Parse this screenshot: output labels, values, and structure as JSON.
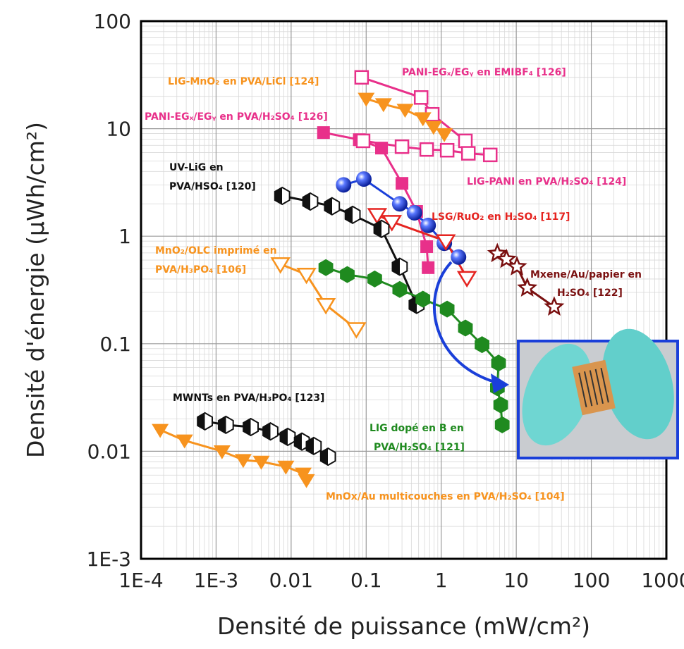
{
  "chart_data": {
    "type": "scatter",
    "xlabel": "Densité de puissance (mW/cm²)",
    "ylabel": "Densité d'énergie (µWh/cm²)",
    "xscale": "log",
    "yscale": "log",
    "grid": true,
    "xlim": [
      0.0001,
      1000
    ],
    "ylim": [
      0.001,
      100
    ],
    "xticks": [
      {
        "value": 0.0001,
        "label": "1E-4"
      },
      {
        "value": 0.001,
        "label": "1E-3"
      },
      0.01,
      0.1,
      1,
      10,
      100,
      1000
    ],
    "yticks": [
      {
        "value": 0.001,
        "label": "1E-3"
      },
      0.01,
      0.1,
      1,
      10,
      100
    ],
    "series": [
      {
        "color": "#e8308a",
        "marker": "square-open",
        "x": [
          0.087,
          0.54,
          0.76,
          2.1
        ],
        "values": [
          30,
          19.5,
          13.6,
          7.7
        ]
      },
      {
        "color": "#f7931e",
        "marker": "triangle-down",
        "x": [
          0.1,
          0.17,
          0.33,
          0.57,
          0.79,
          1.1
        ],
        "values": [
          19,
          16.9,
          15,
          12.5,
          10.4,
          8.9
        ]
      },
      {
        "color": "#e8308a",
        "marker": "square",
        "x": [
          0.027,
          0.081,
          0.16,
          0.3,
          0.47,
          0.64,
          0.67
        ],
        "values": [
          9.2,
          7.9,
          6.6,
          3.1,
          1.7,
          0.8,
          0.51
        ]
      },
      {
        "color": "#e8308a",
        "marker": "square-open",
        "x": [
          0.091,
          0.3,
          0.64,
          1.2,
          2.3,
          4.5
        ],
        "values": [
          7.7,
          6.8,
          6.4,
          6.3,
          5.9,
          5.7
        ]
      },
      {
        "color": "#1a3fd9",
        "marker": "sphere",
        "x": [
          0.05,
          0.093,
          0.28,
          0.44,
          0.67,
          1.1,
          1.7
        ],
        "values": [
          3.0,
          3.4,
          2.0,
          1.65,
          1.26,
          0.86,
          0.64
        ]
      },
      {
        "color": "#e52420",
        "marker": "triangle-down-open",
        "x": [
          0.14,
          0.22,
          1.15,
          2.2
        ],
        "values": [
          1.58,
          1.36,
          0.9,
          0.41
        ]
      },
      {
        "color": "#111111",
        "marker": "hexagon-half",
        "x": [
          0.0076,
          0.018,
          0.035,
          0.066,
          0.16,
          0.28,
          0.47
        ],
        "values": [
          2.37,
          2.1,
          1.9,
          1.58,
          1.17,
          0.52,
          0.23
        ]
      },
      {
        "color": "#f7931e",
        "marker": "triangle-down-open",
        "x": [
          0.0072,
          0.016,
          0.029,
          0.074
        ],
        "values": [
          0.55,
          0.44,
          0.23,
          0.137
        ]
      },
      {
        "color": "#1f8a1f",
        "marker": "hexagon",
        "x": [
          0.029,
          0.056,
          0.13,
          0.28,
          0.57,
          1.2,
          2.1,
          3.5,
          5.8,
          5.6,
          6.2,
          6.5
        ],
        "values": [
          0.51,
          0.44,
          0.4,
          0.32,
          0.26,
          0.21,
          0.14,
          0.098,
          0.066,
          0.039,
          0.027,
          0.0176
        ]
      },
      {
        "color": "#7a1010",
        "marker": "star-open",
        "x": [
          5.6,
          7.4,
          10.2,
          14,
          32
        ],
        "values": [
          0.69,
          0.61,
          0.52,
          0.33,
          0.22
        ]
      },
      {
        "color": "#111111",
        "marker": "hexagon-half",
        "x": [
          0.00071,
          0.00135,
          0.0029,
          0.0053,
          0.009,
          0.0139,
          0.02,
          0.031
        ],
        "values": [
          0.019,
          0.0176,
          0.0168,
          0.0153,
          0.0136,
          0.0123,
          0.0112,
          0.0089
        ]
      },
      {
        "color": "#f7931e",
        "marker": "triangle-down",
        "x": [
          0.00018,
          0.00038,
          0.0012,
          0.0023,
          0.004,
          0.0085,
          0.0145,
          0.016
        ],
        "values": [
          0.0158,
          0.0126,
          0.01,
          0.0083,
          0.008,
          0.0072,
          0.0062,
          0.0054
        ]
      }
    ],
    "annotations": [
      {
        "color": "#f7931e",
        "lines": [
          "LIG-MnO₂ en PVA/LiCl [124]"
        ]
      },
      {
        "color": "#e8308a",
        "lines": [
          "PANI-EGₓ/EGᵧ en EMIBF₄ [126]"
        ]
      },
      {
        "color": "#e8308a",
        "lines": [
          "PANI-EGₓ/EGᵧ en PVA/H₂SO₄ [126]"
        ]
      },
      {
        "color": "#111111",
        "lines": [
          "UV-LiG en",
          "PVA/HSO₄ [120]"
        ]
      },
      {
        "color": "#e8308a",
        "lines": [
          "LIG-PANI en PVA/H₂SO₄ [124]"
        ]
      },
      {
        "color": "#e52420",
        "lines": [
          "LSG/RuO₂ en H₂SO₄ [117]"
        ]
      },
      {
        "color": "#f7931e",
        "lines": [
          "MnO₂/OLC imprimé en",
          "PVA/H₃PO₄ [106]"
        ]
      },
      {
        "color": "#7a1010",
        "lines": [
          "Mxene/Au/papier en",
          "H₂SO₄ [122]"
        ]
      },
      {
        "color": "#111111",
        "lines": [
          "MWNTs en PVA/H₃PO₄ [123]"
        ]
      },
      {
        "color": "#1f8a1f",
        "lines": [
          "LIG dopé en B en",
          "PVA/H₂SO₄ [121]"
        ]
      },
      {
        "color": "#f7931e",
        "lines": [
          "MnOx/Au multicouches en PVA/H₂SO₄ [104]"
        ]
      }
    ]
  }
}
